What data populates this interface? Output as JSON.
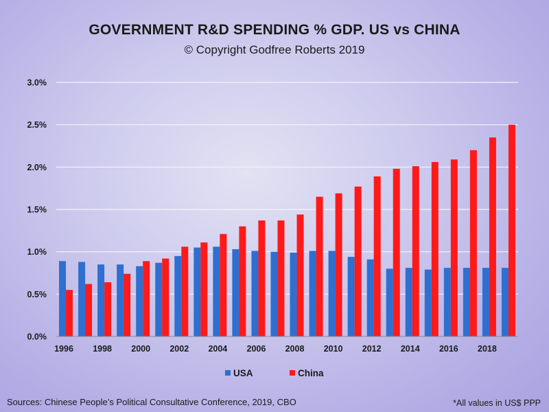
{
  "chart_data": {
    "type": "bar",
    "title": "GOVERNMENT R&D SPENDING % GDP. US vs CHINA",
    "subtitle": "© Copyright Godfree Roberts 2019",
    "x": [
      1996,
      1997,
      1998,
      1999,
      2000,
      2001,
      2002,
      2003,
      2004,
      2005,
      2006,
      2007,
      2008,
      2009,
      2010,
      2011,
      2012,
      2013,
      2014,
      2015,
      2016,
      2017,
      2018,
      2019
    ],
    "x_tick_labels": [
      "1996",
      "1998",
      "2000",
      "2002",
      "2004",
      "2006",
      "2008",
      "2010",
      "2012",
      "2014",
      "2016",
      "2018"
    ],
    "y_tick_labels": [
      "0.0%",
      "0.5%",
      "1.0%",
      "1.5%",
      "2.0%",
      "2.5%",
      "3.0%"
    ],
    "ylim": [
      0,
      3.0
    ],
    "series": [
      {
        "name": "USA",
        "color": "#2e6fd0",
        "values": [
          0.89,
          0.88,
          0.85,
          0.85,
          0.83,
          0.87,
          0.95,
          1.05,
          1.06,
          1.03,
          1.01,
          1.0,
          0.99,
          1.01,
          1.01,
          0.94,
          0.91,
          0.8,
          0.81,
          0.79,
          0.81,
          0.81,
          0.81,
          0.81
        ]
      },
      {
        "name": "China",
        "color": "#ff1a1a",
        "values": [
          0.55,
          0.62,
          0.64,
          0.74,
          0.89,
          0.92,
          1.06,
          1.11,
          1.21,
          1.3,
          1.37,
          1.37,
          1.44,
          1.65,
          1.69,
          1.77,
          1.89,
          1.98,
          2.01,
          2.06,
          2.09,
          2.2,
          2.35,
          2.5
        ]
      }
    ],
    "legend_position": "bottom-center",
    "grid": true
  },
  "footer": {
    "sources": "Sources: Chinese People’s Political Consultative Conference, 2019, CBO",
    "note": "*All values in US$ PPP"
  }
}
